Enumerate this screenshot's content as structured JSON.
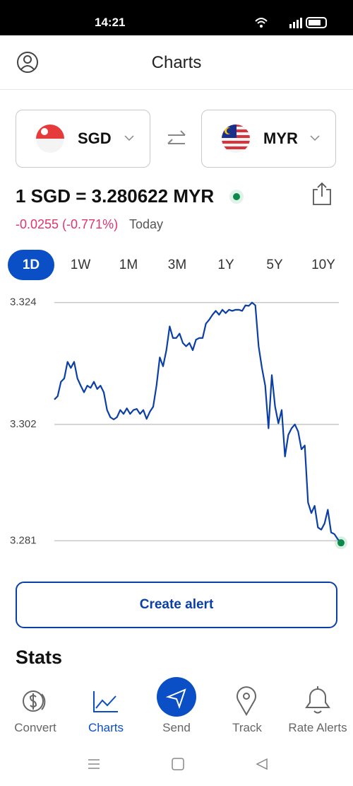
{
  "status_bar": {
    "time": "14:21"
  },
  "header": {
    "title": "Charts"
  },
  "currency_pair": {
    "from": "SGD",
    "to": "MYR"
  },
  "rate": "1 SGD = 3.280622 MYR",
  "change": {
    "value": "-0.0255 (-0.771%)",
    "label": "Today"
  },
  "ranges": {
    "items": [
      "1D",
      "1W",
      "1M",
      "3M",
      "1Y",
      "5Y",
      "10Y"
    ],
    "active": "1D"
  },
  "chart_data": {
    "type": "line",
    "color": "#0b3fa6",
    "grid": true,
    "end_marker_color": "#0a8a4a",
    "ylim": [
      3.279,
      3.326
    ],
    "yticks": [
      3.281,
      3.302,
      3.324
    ],
    "values": [
      3.3065,
      3.3071,
      3.3097,
      3.3103,
      3.3133,
      3.3122,
      3.3133,
      3.3103,
      3.309,
      3.3078,
      3.309,
      3.3086,
      3.3097,
      3.3084,
      3.309,
      3.3078,
      3.3046,
      3.3033,
      3.3029,
      3.3033,
      3.3046,
      3.3039,
      3.3049,
      3.3039,
      3.3046,
      3.3048,
      3.3039,
      3.3046,
      3.303,
      3.3043,
      3.3052,
      3.309,
      3.3141,
      3.3125,
      3.3154,
      3.3197,
      3.3176,
      3.3176,
      3.3184,
      3.3167,
      3.3161,
      3.3167,
      3.3154,
      3.3173,
      3.3176,
      3.3176,
      3.3202,
      3.3209,
      3.3218,
      3.3225,
      3.3218,
      3.3227,
      3.3221,
      3.3227,
      3.3225,
      3.3227,
      3.3227,
      3.3225,
      3.3235,
      3.3234,
      3.324,
      3.3235,
      3.3161,
      3.3122,
      3.309,
      3.3013,
      3.3109,
      3.3052,
      3.3022,
      3.3046,
      3.2962,
      3.3001,
      3.3013,
      3.302,
      3.3007,
      3.2975,
      3.2982,
      3.2879,
      3.286,
      3.2873,
      3.2834,
      3.283,
      3.2841,
      3.2866,
      3.2825,
      3.2822,
      3.2813,
      3.280622
    ]
  },
  "create_alert": "Create alert",
  "stats_heading": "Stats",
  "nav": {
    "items": [
      "Convert",
      "Charts",
      "Send",
      "Track",
      "Rate Alerts"
    ],
    "active": "Charts"
  }
}
